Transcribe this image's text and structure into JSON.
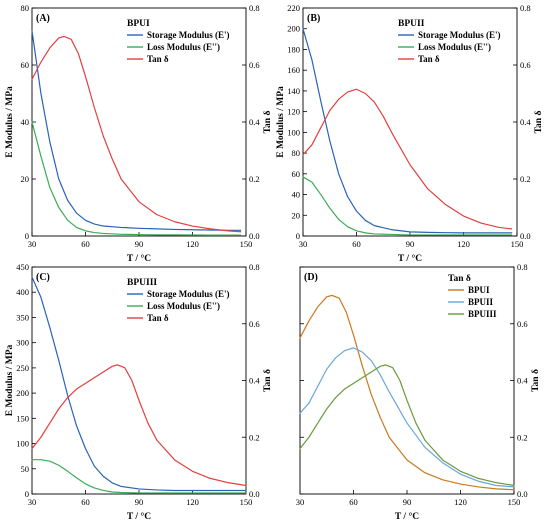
{
  "chart_data": [
    {
      "type": "line",
      "panel_label": "(A)",
      "legend_title": "BPUI",
      "xlabel": "T / °C",
      "ylabel": "E Modulus / MPa",
      "y2label": "Tan δ",
      "xlim": [
        30,
        150
      ],
      "ylim": [
        0,
        80
      ],
      "y2lim": [
        0,
        0.8
      ],
      "xticks": [
        30,
        60,
        90,
        120,
        150
      ],
      "yticks": [
        0,
        20,
        40,
        60,
        80
      ],
      "y2ticks": [
        0.0,
        0.2,
        0.4,
        0.6,
        0.8
      ],
      "legend_position": "top-right",
      "series": [
        {
          "name": "Storage Modulus (E')",
          "axis": "left",
          "color": "#2a63b7",
          "x": [
            30,
            35,
            40,
            45,
            50,
            55,
            60,
            65,
            70,
            80,
            90,
            100,
            110,
            120,
            130,
            140,
            147
          ],
          "y": [
            72,
            50,
            33,
            20,
            12.5,
            8,
            5.5,
            4.2,
            3.5,
            3,
            2.7,
            2.5,
            2.3,
            2.2,
            2.1,
            2,
            2
          ]
        },
        {
          "name": "Loss Modulus (E'')",
          "axis": "left",
          "color": "#3daa57",
          "x": [
            30,
            35,
            40,
            45,
            50,
            55,
            60,
            65,
            70,
            80,
            90,
            100,
            110,
            120,
            130,
            140,
            147
          ],
          "y": [
            40,
            28,
            17,
            10,
            5.5,
            3,
            1.8,
            1.2,
            0.9,
            0.6,
            0.5,
            0.4,
            0.4,
            0.35,
            0.3,
            0.3,
            0.3
          ]
        },
        {
          "name": "Tan δ",
          "axis": "right",
          "color": "#e04040",
          "x": [
            30,
            35,
            40,
            45,
            48,
            52,
            56,
            60,
            65,
            70,
            75,
            80,
            90,
            100,
            110,
            120,
            130,
            140,
            147
          ],
          "y": [
            0.55,
            0.61,
            0.66,
            0.695,
            0.7,
            0.69,
            0.64,
            0.56,
            0.45,
            0.35,
            0.27,
            0.2,
            0.12,
            0.075,
            0.05,
            0.035,
            0.025,
            0.018,
            0.015
          ]
        }
      ]
    },
    {
      "type": "line",
      "panel_label": "(B)",
      "legend_title": "BPUII",
      "xlabel": "T / °C",
      "ylabel": "E Modulus / MPa",
      "y2label": "Tan δ",
      "xlim": [
        30,
        150
      ],
      "ylim": [
        0,
        220
      ],
      "y2lim": [
        0,
        0.8
      ],
      "xticks": [
        30,
        60,
        90,
        120,
        150
      ],
      "yticks": [
        0,
        20,
        40,
        60,
        80,
        100,
        120,
        140,
        160,
        180,
        200,
        220
      ],
      "y2ticks": [
        0.0,
        0.2,
        0.4,
        0.6,
        0.8
      ],
      "legend_position": "top-right",
      "series": [
        {
          "name": "Storage Modulus (E')",
          "axis": "left",
          "color": "#2a63b7",
          "x": [
            30,
            35,
            40,
            45,
            50,
            55,
            60,
            65,
            70,
            80,
            90,
            100,
            110,
            120,
            130,
            140,
            147
          ],
          "y": [
            200,
            170,
            130,
            92,
            60,
            38,
            24,
            15,
            10,
            6,
            4,
            3.5,
            3.2,
            3,
            3,
            3,
            3
          ]
        },
        {
          "name": "Loss Modulus (E'')",
          "axis": "left",
          "color": "#3daa57",
          "x": [
            30,
            35,
            40,
            45,
            50,
            55,
            60,
            65,
            70,
            80,
            90,
            100,
            110,
            120,
            130,
            140,
            147
          ],
          "y": [
            57,
            52,
            40,
            27,
            16,
            9,
            5,
            3,
            2,
            1.5,
            1,
            1,
            1,
            1,
            1,
            1,
            1
          ]
        },
        {
          "name": "Tan δ",
          "axis": "right",
          "color": "#e04040",
          "x": [
            30,
            35,
            40,
            45,
            50,
            55,
            60,
            65,
            70,
            75,
            80,
            90,
            100,
            110,
            120,
            130,
            140,
            147
          ],
          "y": [
            0.285,
            0.32,
            0.38,
            0.44,
            0.48,
            0.505,
            0.515,
            0.5,
            0.47,
            0.42,
            0.36,
            0.25,
            0.165,
            0.11,
            0.07,
            0.045,
            0.03,
            0.025
          ]
        }
      ]
    },
    {
      "type": "line",
      "panel_label": "(C)",
      "legend_title": "BPUIII",
      "xlabel": "T / °C",
      "ylabel": "E Modulus / MPa",
      "y2label": "Tan δ",
      "xlim": [
        30,
        150
      ],
      "ylim": [
        0,
        450
      ],
      "y2lim": [
        0,
        0.8
      ],
      "xticks": [
        30,
        60,
        90,
        120,
        150
      ],
      "yticks": [
        0,
        50,
        100,
        150,
        200,
        250,
        300,
        350,
        400,
        450
      ],
      "y2ticks": [
        0.0,
        0.2,
        0.4,
        0.6,
        0.8
      ],
      "legend_position": "top-right",
      "series": [
        {
          "name": "Storage Modulus (E')",
          "axis": "left",
          "color": "#2a63b7",
          "x": [
            30,
            35,
            40,
            45,
            50,
            55,
            60,
            65,
            70,
            75,
            80,
            90,
            100,
            110,
            120,
            130,
            140,
            150
          ],
          "y": [
            430,
            390,
            330,
            265,
            195,
            135,
            90,
            55,
            35,
            22,
            15,
            10,
            8,
            7,
            7,
            7,
            7,
            7
          ]
        },
        {
          "name": "Loss Modulus (E'')",
          "axis": "left",
          "color": "#3daa57",
          "x": [
            30,
            35,
            40,
            45,
            50,
            55,
            60,
            65,
            70,
            75,
            80,
            90,
            100,
            110,
            120,
            130,
            140,
            150
          ],
          "y": [
            68,
            68,
            65,
            57,
            45,
            32,
            20,
            12,
            7,
            4,
            3,
            2,
            2,
            2,
            2,
            2,
            2,
            2
          ]
        },
        {
          "name": "Tan δ",
          "axis": "right",
          "color": "#e04040",
          "x": [
            30,
            35,
            40,
            45,
            50,
            55,
            60,
            65,
            70,
            75,
            78,
            82,
            86,
            90,
            95,
            100,
            110,
            120,
            130,
            140,
            150
          ],
          "y": [
            0.16,
            0.2,
            0.25,
            0.3,
            0.34,
            0.37,
            0.39,
            0.41,
            0.43,
            0.45,
            0.455,
            0.445,
            0.4,
            0.33,
            0.25,
            0.19,
            0.12,
            0.08,
            0.055,
            0.04,
            0.03
          ]
        }
      ]
    },
    {
      "type": "line",
      "panel_label": "(D)",
      "legend_title": "Tan δ",
      "xlabel": "T / °C",
      "ylabel": "",
      "y2label": "Tan δ",
      "xlim": [
        30,
        150
      ],
      "ylim": [
        0,
        0.8
      ],
      "y2lim": [
        0,
        0.8
      ],
      "xticks": [
        30,
        60,
        90,
        120,
        150
      ],
      "yticks": [
        0.0,
        0.2,
        0.4,
        0.6,
        0.8
      ],
      "y2ticks": [
        0.0,
        0.2,
        0.4,
        0.6,
        0.8
      ],
      "legend_position": "top-right",
      "series": [
        {
          "name": "BPUI",
          "axis": "right",
          "color": "#c8791e",
          "x": [
            30,
            35,
            40,
            45,
            48,
            52,
            56,
            60,
            65,
            70,
            75,
            80,
            90,
            100,
            110,
            120,
            130,
            140,
            150
          ],
          "y": [
            0.55,
            0.61,
            0.66,
            0.695,
            0.7,
            0.69,
            0.64,
            0.56,
            0.45,
            0.35,
            0.27,
            0.2,
            0.12,
            0.075,
            0.05,
            0.035,
            0.025,
            0.018,
            0.015
          ]
        },
        {
          "name": "BPUII",
          "axis": "right",
          "color": "#6aa6dc",
          "x": [
            30,
            35,
            40,
            45,
            50,
            55,
            60,
            65,
            70,
            75,
            80,
            90,
            100,
            110,
            120,
            130,
            140,
            150
          ],
          "y": [
            0.285,
            0.32,
            0.38,
            0.44,
            0.48,
            0.505,
            0.515,
            0.5,
            0.47,
            0.42,
            0.36,
            0.25,
            0.165,
            0.11,
            0.07,
            0.045,
            0.03,
            0.025
          ]
        },
        {
          "name": "BPUIII",
          "axis": "right",
          "color": "#6b9a3e",
          "x": [
            30,
            35,
            40,
            45,
            50,
            55,
            60,
            65,
            70,
            75,
            78,
            82,
            86,
            90,
            95,
            100,
            110,
            120,
            130,
            140,
            150
          ],
          "y": [
            0.16,
            0.2,
            0.25,
            0.3,
            0.34,
            0.37,
            0.39,
            0.41,
            0.43,
            0.45,
            0.455,
            0.445,
            0.4,
            0.33,
            0.25,
            0.19,
            0.12,
            0.08,
            0.055,
            0.04,
            0.03
          ]
        }
      ]
    }
  ]
}
